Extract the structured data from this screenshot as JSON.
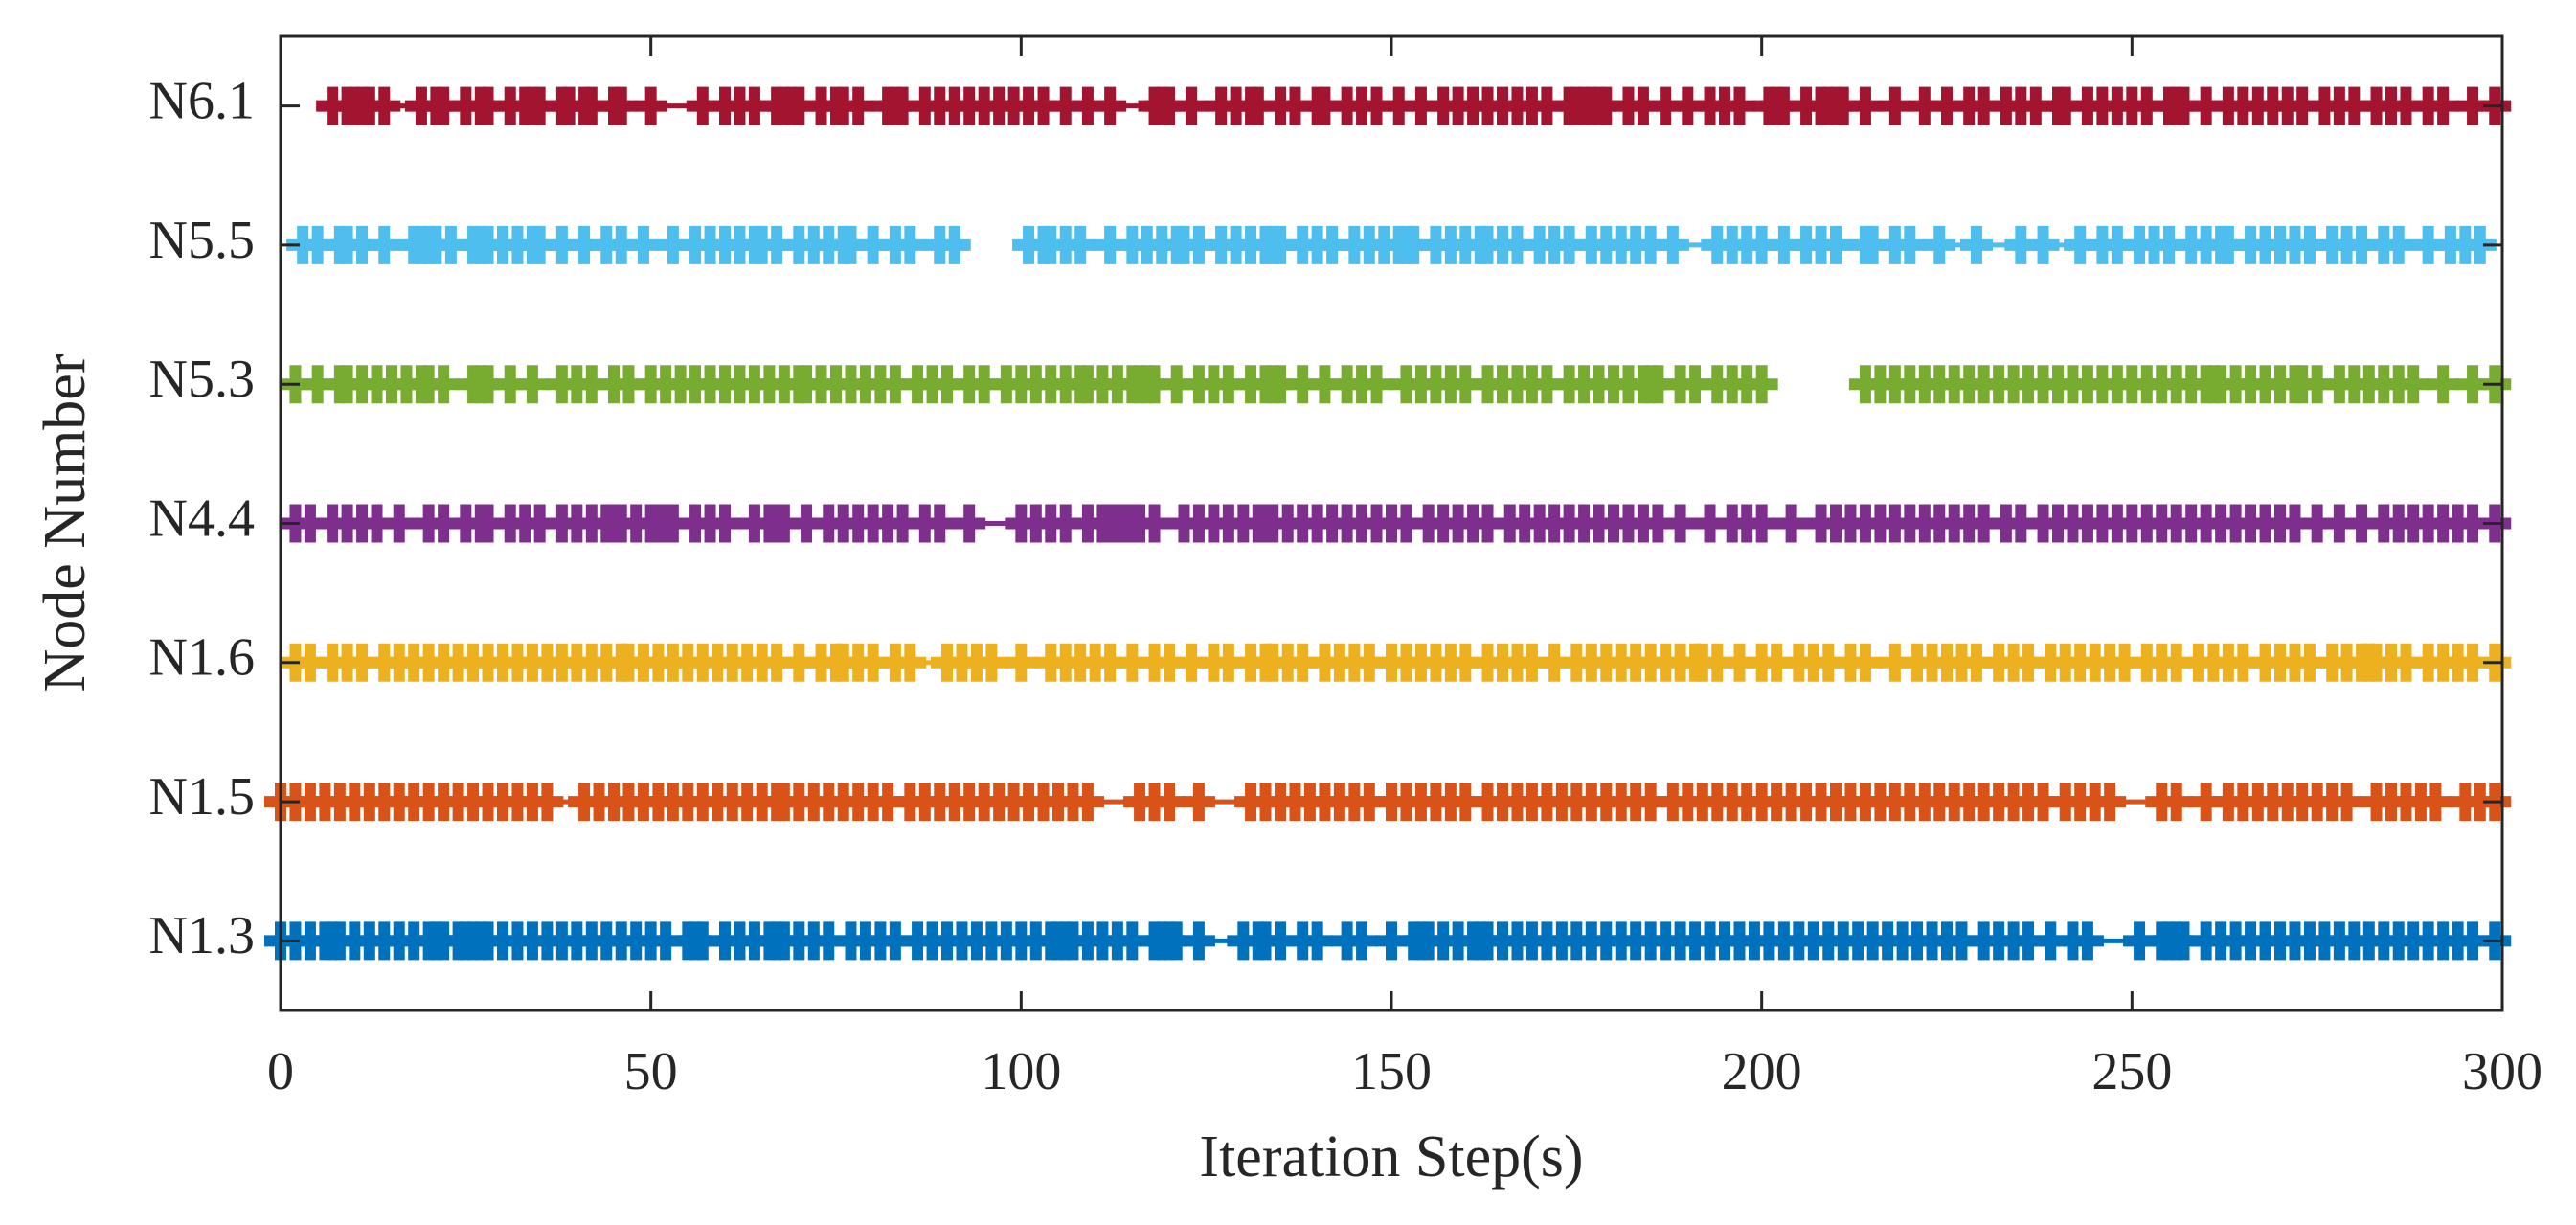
{
  "chart_data": {
    "type": "event",
    "xlabel": "Iteration Step(s)",
    "ylabel": "Node Number",
    "xlim": [
      0,
      300
    ],
    "xticks": [
      0,
      50,
      100,
      150,
      200,
      250,
      300
    ],
    "categories": [
      "N1.3",
      "N1.5",
      "N1.6",
      "N4.4",
      "N5.3",
      "N5.5",
      "N6.1"
    ],
    "series": [
      {
        "color": "#0072BD",
        "x": [
          0,
          2,
          4,
          6,
          7,
          8,
          10,
          12,
          14,
          16,
          18,
          20,
          21,
          22,
          24,
          25,
          26,
          27,
          28,
          30,
          32,
          34,
          36,
          38,
          40,
          42,
          44,
          46,
          48,
          50,
          52,
          55,
          56,
          57,
          60,
          62,
          64,
          66,
          67,
          68,
          70,
          72,
          74,
          77,
          79,
          81,
          83,
          86,
          88,
          90,
          92,
          94,
          96,
          98,
          100,
          102,
          104,
          105,
          106,
          107,
          109,
          111,
          113,
          115,
          118,
          119,
          120,
          121,
          124,
          130,
          132,
          133,
          135,
          138,
          140,
          144,
          146,
          150,
          153,
          154,
          155,
          157,
          159,
          161,
          162,
          163,
          165,
          167,
          169,
          171,
          173,
          175,
          177,
          179,
          181,
          183,
          185,
          187,
          189,
          191,
          193,
          195,
          197,
          199,
          201,
          203,
          205,
          207,
          209,
          211,
          213,
          215,
          217,
          219,
          221,
          223,
          225,
          227,
          230,
          232,
          234,
          236,
          239,
          242,
          244,
          251,
          254,
          255,
          256,
          257,
          260,
          262,
          264,
          266,
          268,
          270,
          272,
          274,
          276,
          278,
          280,
          282,
          284,
          286,
          288,
          290,
          292,
          294,
          296,
          299
        ]
      },
      {
        "color": "#D95319",
        "x": [
          0,
          2,
          4,
          6,
          8,
          10,
          12,
          14,
          16,
          18,
          20,
          22,
          24,
          26,
          28,
          30,
          32,
          34,
          36,
          41,
          43,
          45,
          47,
          49,
          51,
          53,
          55,
          57,
          59,
          61,
          63,
          65,
          67,
          68,
          70,
          72,
          74,
          76,
          78,
          80,
          82,
          85,
          87,
          89,
          91,
          93,
          95,
          97,
          99,
          101,
          103,
          105,
          107,
          109,
          116,
          118,
          120,
          124,
          131,
          133,
          135,
          137,
          139,
          141,
          143,
          145,
          147,
          150,
          152,
          154,
          156,
          158,
          160,
          163,
          165,
          167,
          169,
          171,
          173,
          175,
          177,
          179,
          181,
          183,
          185,
          188,
          190,
          192,
          194,
          196,
          198,
          200,
          202,
          204,
          206,
          208,
          210,
          212,
          214,
          216,
          218,
          220,
          222,
          224,
          226,
          228,
          230,
          232,
          234,
          236,
          238,
          241,
          243,
          245,
          247,
          254,
          256,
          260,
          263,
          265,
          267,
          269,
          271,
          273,
          275,
          277,
          279,
          283,
          285,
          287,
          289,
          291,
          295,
          297,
          299
        ]
      },
      {
        "color": "#EDB120",
        "x": [
          2,
          4,
          7,
          9,
          11,
          14,
          16,
          18,
          20,
          22,
          24,
          26,
          28,
          30,
          32,
          34,
          36,
          38,
          40,
          42,
          44,
          46,
          47,
          49,
          51,
          53,
          55,
          57,
          59,
          61,
          63,
          65,
          67,
          70,
          73,
          75,
          76,
          78,
          80,
          83,
          85,
          90,
          92,
          94,
          96,
          100,
          104,
          106,
          108,
          110,
          112,
          115,
          118,
          120,
          123,
          126,
          128,
          131,
          133,
          134,
          136,
          138,
          141,
          143,
          145,
          147,
          150,
          152,
          154,
          156,
          158,
          160,
          163,
          165,
          167,
          169,
          172,
          175,
          177,
          179,
          181,
          183,
          185,
          187,
          189,
          191,
          192,
          194,
          197,
          200,
          202,
          205,
          207,
          209,
          212,
          214,
          218,
          221,
          223,
          225,
          227,
          229,
          232,
          234,
          236,
          239,
          241,
          243,
          245,
          247,
          249,
          252,
          254,
          256,
          259,
          261,
          263,
          265,
          268,
          270,
          272,
          274,
          277,
          279,
          281,
          282,
          283,
          285,
          287,
          290,
          292,
          294,
          296,
          299
        ]
      },
      {
        "color": "#7E2F8E",
        "x": [
          2,
          4,
          7,
          9,
          11,
          13,
          16,
          20,
          22,
          25,
          27,
          28,
          31,
          33,
          35,
          38,
          40,
          42,
          44,
          45,
          46,
          48,
          50,
          51,
          52,
          53,
          56,
          58,
          60,
          64,
          66,
          67,
          68,
          71,
          74,
          76,
          78,
          80,
          82,
          84,
          87,
          89,
          93,
          100,
          102,
          104,
          106,
          109,
          111,
          112,
          113,
          114,
          115,
          116,
          118,
          122,
          124,
          126,
          128,
          130,
          132,
          133,
          134,
          136,
          138,
          140,
          142,
          144,
          146,
          148,
          150,
          152,
          155,
          157,
          159,
          161,
          163,
          166,
          168,
          170,
          172,
          174,
          176,
          178,
          180,
          182,
          184,
          186,
          189,
          193,
          196,
          198,
          200,
          204,
          208,
          210,
          212,
          214,
          216,
          218,
          220,
          222,
          224,
          226,
          228,
          230,
          233,
          235,
          238,
          240,
          242,
          244,
          246,
          248,
          250,
          252,
          254,
          256,
          258,
          260,
          262,
          264,
          266,
          268,
          270,
          272,
          275,
          278,
          281,
          284,
          286,
          288,
          290,
          292,
          294,
          296,
          299
        ]
      },
      {
        "color": "#77AC30",
        "x": [
          2,
          5,
          8,
          9,
          11,
          13,
          15,
          17,
          19,
          20,
          22,
          26,
          27,
          28,
          31,
          34,
          38,
          40,
          42,
          45,
          47,
          50,
          52,
          54,
          56,
          58,
          60,
          62,
          64,
          66,
          68,
          70,
          71,
          73,
          75,
          77,
          79,
          81,
          83,
          86,
          88,
          90,
          93,
          95,
          98,
          100,
          102,
          104,
          106,
          108,
          109,
          111,
          113,
          115,
          116,
          117,
          118,
          121,
          124,
          126,
          128,
          131,
          133,
          134,
          135,
          138,
          141,
          144,
          146,
          148,
          152,
          154,
          156,
          158,
          160,
          163,
          165,
          167,
          169,
          171,
          174,
          176,
          178,
          180,
          182,
          184,
          185,
          186,
          189,
          191,
          194,
          196,
          198,
          200,
          214,
          216,
          218,
          220,
          222,
          224,
          226,
          228,
          230,
          232,
          234,
          236,
          238,
          240,
          242,
          244,
          246,
          248,
          250,
          252,
          254,
          256,
          258,
          260,
          261,
          262,
          264,
          266,
          268,
          270,
          272,
          273,
          275,
          278,
          280,
          282,
          284,
          286,
          288,
          292,
          296,
          299
        ]
      },
      {
        "color": "#4DBEEE",
        "x": [
          3,
          5,
          8,
          9,
          11,
          14,
          18,
          19,
          20,
          21,
          23,
          26,
          27,
          28,
          30,
          32,
          34,
          35,
          38,
          41,
          44,
          46,
          49,
          53,
          56,
          58,
          60,
          62,
          64,
          65,
          67,
          70,
          72,
          74,
          76,
          77,
          80,
          83,
          85,
          89,
          91,
          101,
          103,
          104,
          106,
          108,
          112,
          115,
          117,
          119,
          121,
          122,
          124,
          127,
          129,
          131,
          133,
          134,
          135,
          138,
          140,
          142,
          145,
          147,
          149,
          151,
          152,
          153,
          156,
          158,
          160,
          162,
          163,
          165,
          167,
          170,
          172,
          174,
          177,
          179,
          181,
          183,
          185,
          188,
          194,
          196,
          198,
          200,
          203,
          206,
          208,
          210,
          214,
          215,
          218,
          220,
          224,
          229,
          235,
          238,
          243,
          246,
          248,
          251,
          253,
          255,
          258,
          260,
          262,
          263,
          266,
          268,
          270,
          272,
          274,
          277,
          279,
          281,
          284,
          286,
          290,
          293,
          295,
          297
        ]
      },
      {
        "color": "#A2142F",
        "x": [
          7,
          9,
          10,
          11,
          12,
          14,
          19,
          21,
          22,
          25,
          27,
          28,
          31,
          33,
          34,
          35,
          38,
          39,
          41,
          42,
          45,
          46,
          50,
          57,
          60,
          62,
          64,
          67,
          68,
          69,
          70,
          73,
          75,
          76,
          78,
          82,
          83,
          84,
          87,
          89,
          91,
          93,
          95,
          97,
          99,
          101,
          103,
          106,
          109,
          112,
          118,
          119,
          120,
          123,
          127,
          129,
          131,
          132,
          135,
          137,
          140,
          141,
          144,
          146,
          148,
          151,
          154,
          157,
          159,
          161,
          163,
          165,
          167,
          169,
          171,
          174,
          175,
          176,
          177,
          178,
          179,
          182,
          184,
          187,
          190,
          193,
          195,
          197,
          201,
          202,
          203,
          206,
          208,
          209,
          210,
          211,
          214,
          218,
          222,
          225,
          228,
          230,
          233,
          235,
          237,
          240,
          241,
          244,
          246,
          248,
          250,
          252,
          255,
          256,
          257,
          260,
          263,
          265,
          267,
          269,
          271,
          273,
          276,
          278,
          280,
          283,
          285,
          287,
          290,
          292,
          296,
          299
        ]
      }
    ]
  }
}
